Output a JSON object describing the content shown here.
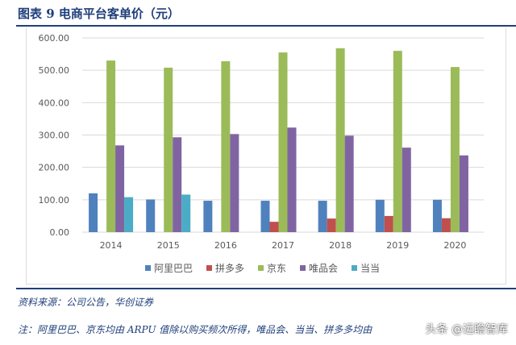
{
  "title": "图表 9   电商平台客单价（元）",
  "source": "资料来源：公司公告，华创证券",
  "footnote": "注：阿里巴巴、京东均由 ARPU 值除以购买频次所得，唯品会、当当、拼多多均由",
  "watermark": "头条 @远瞻智库",
  "chart_data": {
    "type": "bar",
    "categories": [
      "2014",
      "2015",
      "2016",
      "2017",
      "2018",
      "2019",
      "2020"
    ],
    "ylim": [
      0,
      600
    ],
    "yticks": [
      "0.00",
      "100.00",
      "200.00",
      "300.00",
      "400.00",
      "500.00",
      "600.00"
    ],
    "grid": true,
    "legend_position": "bottom",
    "series": [
      {
        "name": "阿里巴巴",
        "color": "#4f81bd",
        "values": [
          120,
          101,
          97,
          97,
          97,
          100,
          100
        ]
      },
      {
        "name": "拼多多",
        "color": "#c0504d",
        "values": [
          null,
          null,
          null,
          32,
          42,
          50,
          43
        ]
      },
      {
        "name": "京东",
        "color": "#9bbb59",
        "values": [
          530,
          508,
          528,
          555,
          568,
          560,
          510
        ]
      },
      {
        "name": "唯品会",
        "color": "#8064a2",
        "values": [
          268,
          293,
          303,
          323,
          298,
          261,
          237
        ]
      },
      {
        "name": "当当",
        "color": "#4bacc6",
        "values": [
          108,
          116,
          null,
          null,
          null,
          null,
          null
        ]
      }
    ]
  }
}
